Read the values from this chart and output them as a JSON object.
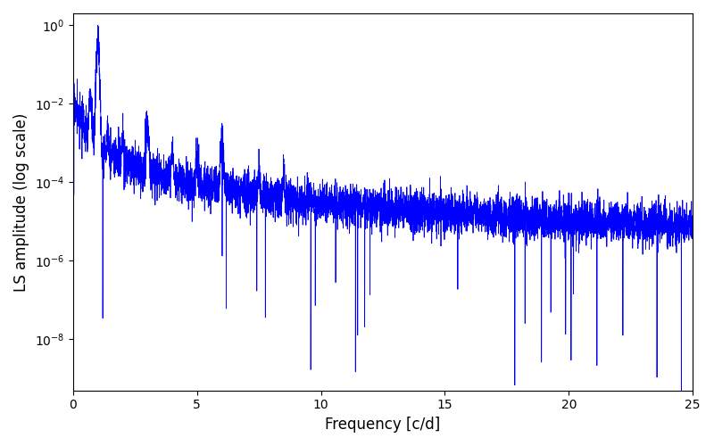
{
  "title": "",
  "xlabel": "Frequency [c/d]",
  "ylabel": "LS amplitude (log scale)",
  "line_color": "#0000FF",
  "xlim": [
    0,
    25
  ],
  "ylim_log": [
    -9.3,
    0.3
  ],
  "background_color": "#ffffff",
  "figsize": [
    8.0,
    5.0
  ],
  "dpi": 100,
  "n_points": 6000,
  "seed": 17
}
